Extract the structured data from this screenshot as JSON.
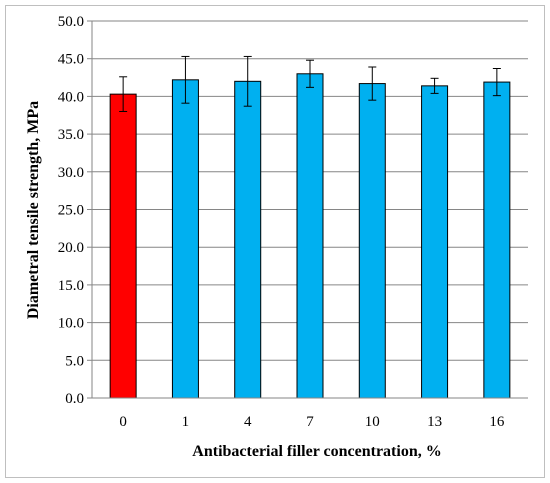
{
  "chart_data": {
    "type": "bar",
    "title": "",
    "xlabel": "Antibacterial filler concentration, %",
    "ylabel": "Diametral tensile strength, MPa",
    "categories": [
      "0",
      "1",
      "4",
      "7",
      "10",
      "13",
      "16"
    ],
    "values": [
      40.3,
      42.2,
      42.0,
      43.0,
      41.7,
      41.4,
      41.9
    ],
    "errors": [
      2.3,
      3.1,
      3.3,
      1.8,
      2.2,
      1.0,
      1.8
    ],
    "bar_colors": [
      "#ff0000",
      "#00b0f0",
      "#00b0f0",
      "#00b0f0",
      "#00b0f0",
      "#00b0f0",
      "#00b0f0"
    ],
    "ylim": [
      0,
      50
    ],
    "yticks": [
      "0.0",
      "5.0",
      "10.0",
      "15.0",
      "20.0",
      "25.0",
      "30.0",
      "35.0",
      "40.0",
      "45.0",
      "50.0"
    ],
    "grid": true,
    "legend": "none"
  }
}
